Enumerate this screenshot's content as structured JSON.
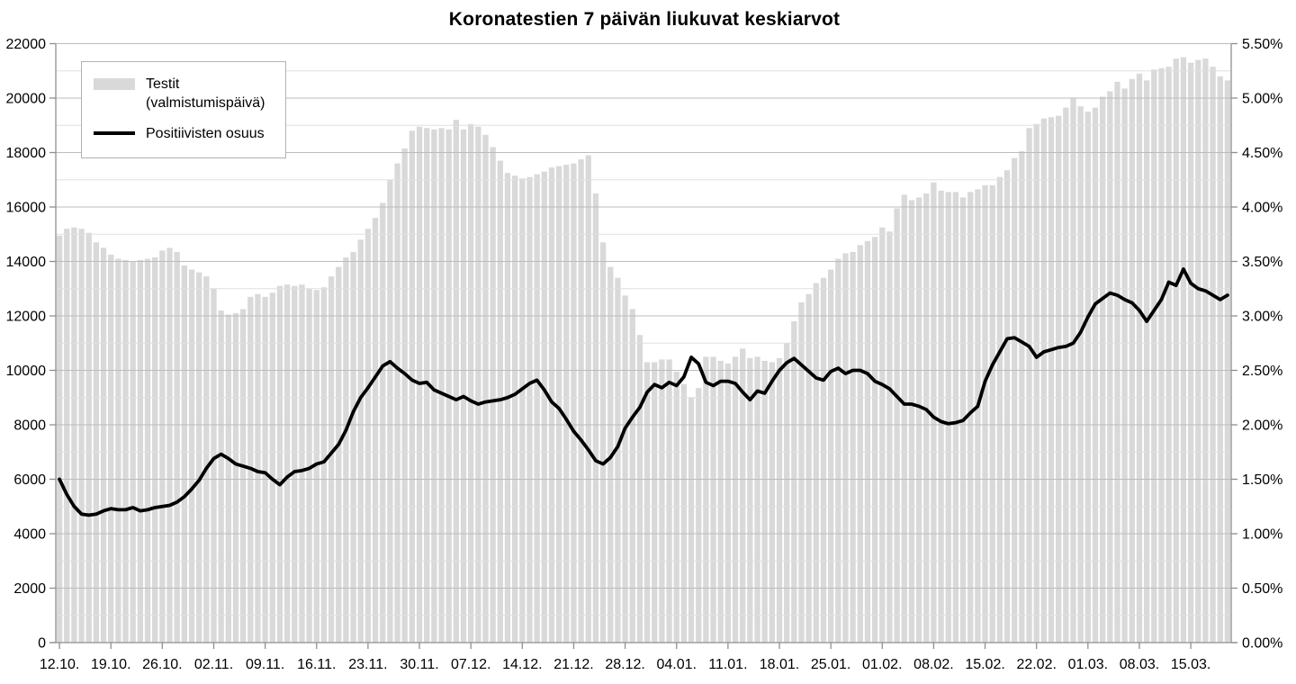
{
  "title": "Koronatestien 7 päivän liukuvat keskiarvot",
  "legend": {
    "items": [
      {
        "label_line1": "Testit",
        "label_line2": "(valmistumispäivä)",
        "type": "bar"
      },
      {
        "label": "Positiivisten osuus",
        "type": "line"
      }
    ]
  },
  "colors": {
    "background": "#ffffff",
    "bar": "#d9d9d9",
    "line": "#000000",
    "grid_major": "#bcbcbc",
    "grid_minor": "#e0e0e0",
    "axis": "#8f8f8f",
    "text": "#000000",
    "legend_border": "#b2b2b2"
  },
  "left_axis": {
    "min": 0,
    "max": 22000,
    "major_step": 2000,
    "minor_step": 1000,
    "tick_labels": [
      "0",
      "2000",
      "4000",
      "6000",
      "8000",
      "10000",
      "12000",
      "14000",
      "16000",
      "18000",
      "20000",
      "22000"
    ]
  },
  "right_axis": {
    "min": 0,
    "max": 5.5,
    "major_step": 0.5,
    "minor_step": 0.25,
    "tick_labels": [
      "0.00%",
      "0.50%",
      "1.00%",
      "1.50%",
      "2.00%",
      "2.50%",
      "3.00%",
      "3.50%",
      "4.00%",
      "4.50%",
      "5.00%",
      "5.50%"
    ]
  },
  "x_axis": {
    "tick_interval_days": 7,
    "tick_labels": [
      "12.10.",
      "19.10.",
      "26.10.",
      "02.11.",
      "09.11.",
      "16.11.",
      "23.11.",
      "30.11.",
      "07.12.",
      "14.12.",
      "21.12.",
      "28.12.",
      "04.01.",
      "11.01.",
      "18.01.",
      "25.01.",
      "01.02.",
      "08.02.",
      "15.02.",
      "22.02.",
      "01.03.",
      "08.03.",
      "15.03."
    ]
  },
  "chart_data": {
    "type": "combo",
    "subtype": "bar+line, dual y-axis",
    "title": "Koronatestien 7 päivän liukuvat keskiarvot",
    "left_ylim": [
      0,
      22000
    ],
    "right_ylim": [
      0,
      5.5
    ],
    "grid": "horizontal; minor every 1000 (0.25%), major every 2000 (0.50%)",
    "legend_position": "top-left",
    "x": [
      "12.10.",
      "13.10.",
      "14.10.",
      "15.10.",
      "16.10.",
      "17.10.",
      "18.10.",
      "19.10.",
      "20.10.",
      "21.10.",
      "22.10.",
      "23.10.",
      "24.10.",
      "25.10.",
      "26.10.",
      "27.10.",
      "28.10.",
      "29.10.",
      "30.10.",
      "31.10.",
      "01.11.",
      "02.11.",
      "03.11.",
      "04.11.",
      "05.11.",
      "06.11.",
      "07.11.",
      "08.11.",
      "09.11.",
      "10.11.",
      "11.11.",
      "12.11.",
      "13.11.",
      "14.11.",
      "15.11.",
      "16.11.",
      "17.11.",
      "18.11.",
      "19.11.",
      "20.11.",
      "21.11.",
      "22.11.",
      "23.11.",
      "24.11.",
      "25.11.",
      "26.11.",
      "27.11.",
      "28.11.",
      "29.11.",
      "30.11.",
      "01.12.",
      "02.12.",
      "03.12.",
      "04.12.",
      "05.12.",
      "06.12.",
      "07.12.",
      "08.12.",
      "09.12.",
      "10.12.",
      "11.12.",
      "12.12.",
      "13.12.",
      "14.12.",
      "15.12.",
      "16.12.",
      "17.12.",
      "18.12.",
      "19.12.",
      "20.12.",
      "21.12.",
      "22.12.",
      "23.12.",
      "24.12.",
      "25.12.",
      "26.12.",
      "27.12.",
      "28.12.",
      "29.12.",
      "30.12.",
      "31.12.",
      "01.01.",
      "02.01.",
      "03.01.",
      "04.01.",
      "05.01.",
      "06.01.",
      "07.01.",
      "08.01.",
      "09.01.",
      "10.01.",
      "11.01.",
      "12.01.",
      "13.01.",
      "14.01.",
      "15.01.",
      "16.01.",
      "17.01.",
      "18.01.",
      "19.01.",
      "20.01.",
      "21.01.",
      "22.01.",
      "23.01.",
      "24.01.",
      "25.01.",
      "26.01.",
      "27.01.",
      "28.01.",
      "29.01.",
      "30.01.",
      "31.01.",
      "01.02.",
      "02.02.",
      "03.02.",
      "04.02.",
      "05.02.",
      "06.02.",
      "07.02.",
      "08.02.",
      "09.02.",
      "10.02.",
      "11.02.",
      "12.02.",
      "13.02.",
      "14.02.",
      "15.02.",
      "16.02.",
      "17.02.",
      "18.02.",
      "19.02.",
      "20.02.",
      "21.02.",
      "22.02.",
      "23.02.",
      "24.02.",
      "25.02.",
      "26.02.",
      "27.02.",
      "28.02.",
      "01.03.",
      "02.03.",
      "03.03.",
      "04.03.",
      "05.03.",
      "06.03.",
      "07.03.",
      "08.03.",
      "09.03.",
      "10.03.",
      "11.03.",
      "12.03.",
      "13.03.",
      "14.03.",
      "15.03.",
      "16.03.",
      "17.03.",
      "18.03.",
      "19.03.",
      "20.03."
    ],
    "series": [
      {
        "name": "Testit (valmistumispäivä)",
        "type": "bar",
        "axis": "left",
        "values": [
          14950,
          15200,
          15250,
          15200,
          15050,
          14700,
          14500,
          14250,
          14100,
          14050,
          14000,
          14050,
          14100,
          14150,
          14400,
          14500,
          14350,
          13850,
          13700,
          13600,
          13450,
          13000,
          12200,
          12050,
          12100,
          12250,
          12700,
          12800,
          12700,
          12850,
          13100,
          13150,
          13100,
          13150,
          13000,
          12950,
          13050,
          13450,
          13800,
          14150,
          14350,
          14800,
          15200,
          15600,
          16150,
          17000,
          17600,
          18150,
          18800,
          18950,
          18900,
          18850,
          18900,
          18850,
          19200,
          18850,
          19050,
          18950,
          18650,
          18200,
          17700,
          17250,
          17150,
          17050,
          17100,
          17200,
          17300,
          17450,
          17500,
          17550,
          17600,
          17750,
          17900,
          16500,
          14700,
          13800,
          13400,
          12750,
          12250,
          11300,
          10300,
          10300,
          10400,
          10400,
          9950,
          9500,
          9000,
          9350,
          10500,
          10500,
          10350,
          10250,
          10500,
          10800,
          10450,
          10500,
          10350,
          10300,
          10450,
          11000,
          11800,
          12500,
          12800,
          13200,
          13400,
          13700,
          14100,
          14300,
          14350,
          14600,
          14750,
          14900,
          15250,
          15100,
          15950,
          16450,
          16250,
          16350,
          16500,
          16900,
          16600,
          16550,
          16550,
          16350,
          16550,
          16650,
          16800,
          16800,
          17100,
          17350,
          17800,
          18050,
          18900,
          19050,
          19250,
          19300,
          19350,
          19650,
          20000,
          19700,
          19500,
          19650,
          20050,
          20250,
          20600,
          20350,
          20700,
          20900,
          20650,
          21050,
          21100,
          21150,
          21450,
          21500,
          21300,
          21400,
          21450,
          21150,
          20800,
          20650
        ]
      },
      {
        "name": "Positiivisten osuus",
        "type": "line",
        "axis": "right",
        "unit": "%",
        "values": [
          1.5,
          1.36,
          1.25,
          1.18,
          1.17,
          1.18,
          1.21,
          1.23,
          1.22,
          1.22,
          1.24,
          1.21,
          1.22,
          1.24,
          1.25,
          1.26,
          1.29,
          1.34,
          1.41,
          1.49,
          1.6,
          1.69,
          1.73,
          1.69,
          1.64,
          1.62,
          1.6,
          1.57,
          1.56,
          1.5,
          1.45,
          1.52,
          1.57,
          1.58,
          1.6,
          1.64,
          1.66,
          1.74,
          1.82,
          1.95,
          2.12,
          2.25,
          2.34,
          2.44,
          2.54,
          2.58,
          2.52,
          2.47,
          2.41,
          2.38,
          2.39,
          2.32,
          2.29,
          2.26,
          2.23,
          2.26,
          2.22,
          2.19,
          2.21,
          2.22,
          2.23,
          2.25,
          2.28,
          2.33,
          2.38,
          2.41,
          2.32,
          2.21,
          2.15,
          2.05,
          1.94,
          1.86,
          1.77,
          1.67,
          1.64,
          1.7,
          1.8,
          1.97,
          2.07,
          2.16,
          2.3,
          2.37,
          2.34,
          2.39,
          2.36,
          2.44,
          2.62,
          2.56,
          2.39,
          2.36,
          2.4,
          2.4,
          2.38,
          2.3,
          2.23,
          2.31,
          2.29,
          2.4,
          2.5,
          2.57,
          2.61,
          2.55,
          2.49,
          2.43,
          2.41,
          2.49,
          2.52,
          2.47,
          2.5,
          2.5,
          2.47,
          2.4,
          2.37,
          2.33,
          2.26,
          2.19,
          2.19,
          2.17,
          2.14,
          2.07,
          2.03,
          2.01,
          2.02,
          2.04,
          2.11,
          2.17,
          2.4,
          2.55,
          2.67,
          2.79,
          2.8,
          2.76,
          2.72,
          2.62,
          2.67,
          2.69,
          2.71,
          2.72,
          2.75,
          2.85,
          2.99,
          3.11,
          3.16,
          3.21,
          3.19,
          3.15,
          3.12,
          3.05,
          2.95,
          3.05,
          3.15,
          3.31,
          3.28,
          3.43,
          3.3,
          3.25,
          3.23,
          3.19,
          3.15,
          3.19
        ]
      }
    ]
  }
}
